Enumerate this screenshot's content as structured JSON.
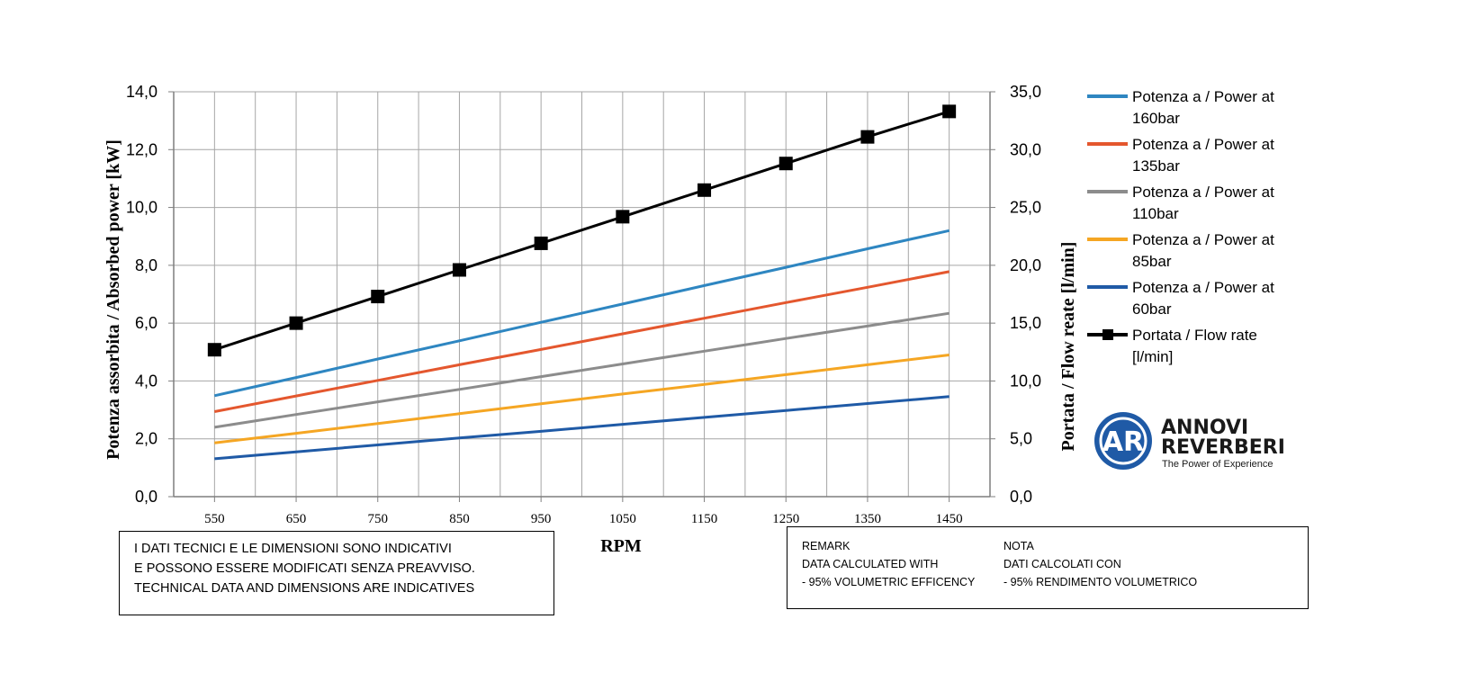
{
  "chart_data": {
    "type": "line",
    "x": [
      550,
      650,
      750,
      850,
      950,
      1050,
      1150,
      1250,
      1350,
      1450
    ],
    "xlabel": "RPM",
    "ylabel_left": "Potenza assorbita / Absorbed power [kW]",
    "ylabel_right": "Portata / Flow reate [l/min]",
    "ylim_left": [
      0,
      14
    ],
    "ylim_right": [
      0,
      35
    ],
    "yticks_left": [
      "0,0",
      "2,0",
      "4,0",
      "6,0",
      "8,0",
      "10,0",
      "12,0",
      "14,0"
    ],
    "yticks_right": [
      "0,0",
      "5,0",
      "10,0",
      "15,0",
      "20,0",
      "25,0",
      "30,0",
      "35,0"
    ],
    "xticks": [
      "550",
      "650",
      "750",
      "850",
      "950",
      "1050",
      "1150",
      "1250",
      "1350",
      "1450"
    ],
    "grid": true,
    "legend_position": "right",
    "series": [
      {
        "name": "Potenza a / Power at 160bar",
        "legend_lines": [
          "Potenza a / Power at",
          "160bar"
        ],
        "axis": "left",
        "color": "#2E86C1",
        "marker": false,
        "values": [
          3.49,
          4.12,
          4.76,
          5.39,
          6.03,
          6.66,
          7.3,
          7.93,
          8.57,
          9.2
        ]
      },
      {
        "name": "Potenza a / Power at 135bar",
        "legend_lines": [
          "Potenza a / Power at",
          "135bar"
        ],
        "axis": "left",
        "color": "#E4572E",
        "marker": false,
        "values": [
          2.94,
          3.48,
          4.02,
          4.56,
          5.09,
          5.63,
          6.17,
          6.71,
          7.24,
          7.78
        ]
      },
      {
        "name": "Potenza a / Power at 110bar",
        "legend_lines": [
          "Potenza a / Power at",
          "110bar"
        ],
        "axis": "left",
        "color": "#8C8C8C",
        "marker": false,
        "values": [
          2.4,
          2.84,
          3.28,
          3.71,
          4.15,
          4.59,
          5.03,
          5.47,
          5.9,
          6.34
        ]
      },
      {
        "name": "Potenza a / Power at 85bar",
        "legend_lines": [
          "Potenza a / Power at",
          "85bar"
        ],
        "axis": "left",
        "color": "#F5A623",
        "marker": false,
        "values": [
          1.86,
          2.19,
          2.53,
          2.87,
          3.21,
          3.55,
          3.88,
          4.22,
          4.56,
          4.9
        ]
      },
      {
        "name": "Potenza a / Power at 60bar",
        "legend_lines": [
          "Potenza a / Power at",
          "60bar"
        ],
        "axis": "left",
        "color": "#1F5AA6",
        "marker": false,
        "values": [
          1.31,
          1.55,
          1.79,
          2.03,
          2.26,
          2.5,
          2.74,
          2.98,
          3.22,
          3.46
        ]
      },
      {
        "name": "Portata / Flow rate [l/min]",
        "legend_lines": [
          "Portata / Flow rate",
          "[l/min]"
        ],
        "axis": "right",
        "color": "#000000",
        "marker": true,
        "values": [
          12.7,
          15.0,
          17.3,
          19.6,
          21.9,
          24.2,
          26.5,
          28.8,
          31.1,
          33.3
        ]
      }
    ]
  },
  "notes": {
    "disclaimer": [
      "I DATI TECNICI E LE DIMENSIONI SONO INDICATIVI",
      "E POSSONO ESSERE MODIFICATI SENZA PREAVVISO.",
      "TECHNICAL DATA AND DIMENSIONS ARE INDICATIVES"
    ],
    "remark_en": [
      "REMARK",
      "DATA CALCULATED WITH",
      "- 95% VOLUMETRIC EFFICENCY"
    ],
    "remark_it": [
      "NOTA",
      " DATI CALCOLATI CON",
      "- 95% RENDIMENTO VOLUMETRICO"
    ]
  },
  "logo": {
    "letters": "AR",
    "name_line1": "ANNOVI",
    "name_line2": "REVERBERI",
    "tagline": "The Power of Experience",
    "color": "#1F5AA6"
  }
}
